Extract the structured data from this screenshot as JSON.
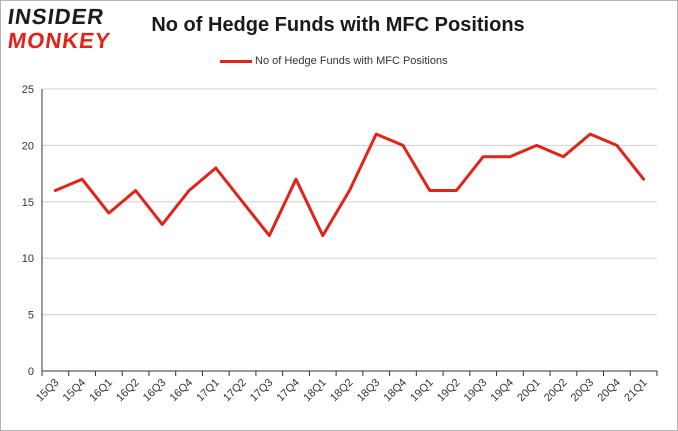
{
  "logo": {
    "line1": "INSIDER",
    "line2": "MONKEY"
  },
  "colors": {
    "series": "#e2231a",
    "grid": "#d0d0d0",
    "axis": "#333333"
  },
  "chart_data": {
    "type": "line",
    "title": "No of Hedge Funds with MFC Positions",
    "xlabel": "",
    "ylabel": "",
    "ylim": [
      0,
      25
    ],
    "yticks": [
      0,
      5,
      10,
      15,
      20,
      25
    ],
    "grid": true,
    "legend_position": "top",
    "categories": [
      "15Q3",
      "15Q4",
      "16Q1",
      "16Q2",
      "16Q3",
      "16Q4",
      "17Q1",
      "17Q2",
      "17Q3",
      "17Q4",
      "18Q1",
      "18Q2",
      "18Q3",
      "18Q4",
      "19Q1",
      "19Q2",
      "19Q3",
      "19Q4",
      "20Q1",
      "20Q2",
      "20Q3",
      "20Q4",
      "21Q1"
    ],
    "series": [
      {
        "name": "No of Hedge Funds with MFC Positions",
        "values": [
          16,
          17,
          14,
          16,
          13,
          16,
          18,
          15,
          12,
          17,
          12,
          16,
          21,
          20,
          16,
          16,
          19,
          19,
          20,
          19,
          21,
          20,
          17
        ]
      }
    ]
  }
}
